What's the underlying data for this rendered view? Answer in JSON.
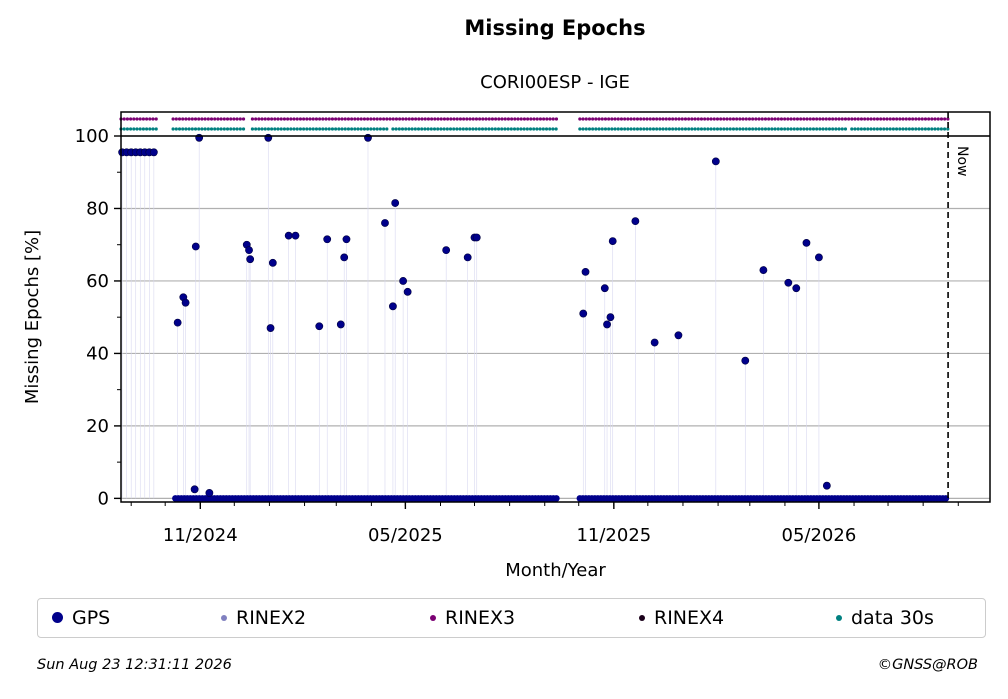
{
  "title": "Missing Epochs",
  "subtitle": "CORI00ESP - IGE",
  "footer": {
    "date": "Sun Aug 23 12:31:11 2026",
    "copyright": "©GNSS@ROB"
  },
  "legend": [
    {
      "label": "GPS",
      "color": "#00008b"
    },
    {
      "label": "RINEX2",
      "color": "#8080c0"
    },
    {
      "label": "RINEX3",
      "color": "#7b0073"
    },
    {
      "label": "RINEX4",
      "color": "#1a001a"
    },
    {
      "label": "data 30s",
      "color": "#008080"
    }
  ],
  "chart_data": {
    "type": "scatter",
    "title": "Missing Epochs",
    "subtitle": "CORI00ESP - IGE",
    "xlabel": "Month/Year",
    "ylabel": "Missing Epochs [%]",
    "x_ticks": [
      "11/2024",
      "05/2025",
      "11/2025",
      "05/2026"
    ],
    "x_tick_dates": [
      "2024-11-01",
      "2025-05-01",
      "2025-11-01",
      "2026-05-01"
    ],
    "xlim": [
      "2024-08-23",
      "2026-09-29"
    ],
    "ylim": [
      -1,
      100
    ],
    "y_ticks": [
      0,
      20,
      40,
      60,
      80,
      100
    ],
    "grid": "horizontal",
    "now_marker": {
      "date": "2026-08-23",
      "label": "Now"
    },
    "series": [
      {
        "name": "GPS",
        "color": "#00008b",
        "spike_points": [
          [
            "2024-08-24",
            95.5
          ],
          [
            "2024-08-28",
            95.5
          ],
          [
            "2024-09-01",
            95.5
          ],
          [
            "2024-09-05",
            95.5
          ],
          [
            "2024-09-09",
            95.5
          ],
          [
            "2024-09-13",
            95.5
          ],
          [
            "2024-09-17",
            95.5
          ],
          [
            "2024-09-21",
            95.5
          ],
          [
            "2024-10-12",
            48.5
          ],
          [
            "2024-10-17",
            55.5
          ],
          [
            "2024-10-19",
            54
          ],
          [
            "2024-10-28",
            69.5
          ],
          [
            "2024-10-31",
            99.5
          ],
          [
            "2024-12-12",
            70
          ],
          [
            "2024-12-14",
            68.5
          ],
          [
            "2024-12-15",
            66
          ],
          [
            "2024-12-31",
            99.5
          ],
          [
            "2025-01-02",
            47
          ],
          [
            "2025-01-04",
            65
          ],
          [
            "2025-01-18",
            72.5
          ],
          [
            "2025-01-24",
            72.5
          ],
          [
            "2025-02-14",
            47.5
          ],
          [
            "2025-02-21",
            71.5
          ],
          [
            "2025-03-05",
            48
          ],
          [
            "2025-03-08",
            66.5
          ],
          [
            "2025-03-10",
            71.5
          ],
          [
            "2025-03-29",
            99.5
          ],
          [
            "2025-04-13",
            76
          ],
          [
            "2025-04-20",
            53
          ],
          [
            "2025-04-22",
            81.5
          ],
          [
            "2025-04-29",
            60
          ],
          [
            "2025-05-03",
            57
          ],
          [
            "2025-06-06",
            68.5
          ],
          [
            "2025-06-25",
            66.5
          ],
          [
            "2025-07-01",
            72
          ],
          [
            "2025-07-03",
            72
          ],
          [
            "2025-10-05",
            51
          ],
          [
            "2025-10-07",
            62.5
          ],
          [
            "2025-10-24",
            58
          ],
          [
            "2025-10-26",
            48
          ],
          [
            "2025-10-29",
            50
          ],
          [
            "2025-10-31",
            71
          ],
          [
            "2025-11-20",
            76.5
          ],
          [
            "2025-12-07",
            43
          ],
          [
            "2025-12-28",
            45
          ],
          [
            "2026-01-30",
            93
          ],
          [
            "2026-02-25",
            38
          ],
          [
            "2026-03-13",
            63
          ],
          [
            "2026-04-04",
            59.5
          ],
          [
            "2026-04-11",
            58
          ],
          [
            "2026-04-20",
            70.5
          ],
          [
            "2026-05-01",
            66.5
          ],
          [
            "2026-05-08",
            3.5
          ],
          [
            "2024-10-27",
            2.5
          ],
          [
            "2024-11-09",
            1.5
          ]
        ],
        "baseline": {
          "value": 0,
          "segments": [
            [
              "2024-10-10",
              "2025-09-13"
            ],
            [
              "2025-10-02",
              "2026-08-23"
            ]
          ]
        }
      },
      {
        "name": "RINEX3",
        "color": "#7b0073",
        "availability": [
          [
            "2024-08-23",
            "2024-09-24"
          ],
          [
            "2024-10-08",
            "2024-12-10"
          ],
          [
            "2024-12-17",
            "2025-09-13"
          ],
          [
            "2025-10-02",
            "2026-08-23"
          ]
        ]
      },
      {
        "name": "data 30s",
        "color": "#008080",
        "availability": [
          [
            "2024-08-23",
            "2024-09-24"
          ],
          [
            "2024-10-08",
            "2024-12-10"
          ],
          [
            "2024-12-17",
            "2025-04-15"
          ],
          [
            "2025-04-20",
            "2025-09-13"
          ],
          [
            "2025-10-02",
            "2026-05-25"
          ],
          [
            "2026-05-30",
            "2026-08-23"
          ]
        ]
      }
    ]
  }
}
